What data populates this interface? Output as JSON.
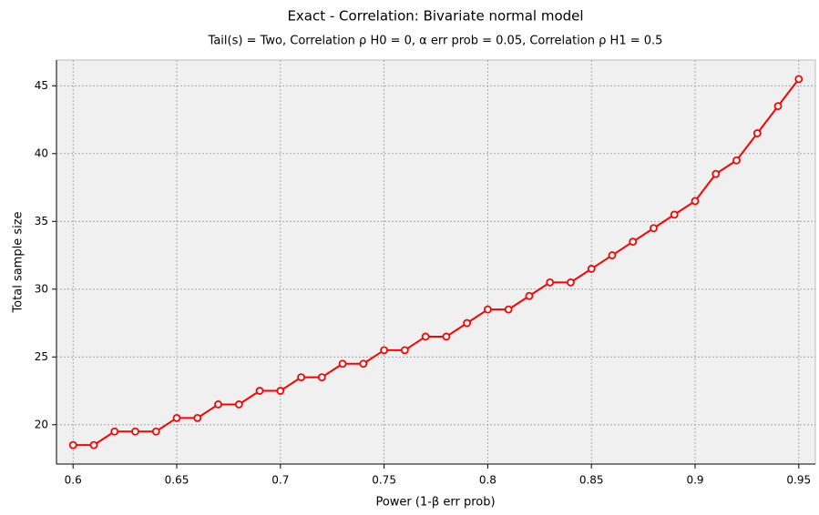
{
  "chart_data": {
    "type": "line",
    "title": "Exact - Correlation: Bivariate normal model",
    "subtitle": "Tail(s) = Two, Correlation ρ H0 = 0, α err prob = 0.05, Correlation ρ H1 = 0.5",
    "x_label": "Power (1-β err prob)",
    "y_label": "Total sample size",
    "x": [
      0.6,
      0.61,
      0.62,
      0.63,
      0.64,
      0.65,
      0.66,
      0.67,
      0.68,
      0.69,
      0.7,
      0.71,
      0.72,
      0.73,
      0.74,
      0.75,
      0.76,
      0.77,
      0.78,
      0.79,
      0.8,
      0.81,
      0.82,
      0.83,
      0.84,
      0.85,
      0.86,
      0.87,
      0.88,
      0.89,
      0.9,
      0.91,
      0.92,
      0.93,
      0.94,
      0.95
    ],
    "series": [
      {
        "color": "#ff0000",
        "values": [
          18.5,
          18.5,
          19.5,
          19.5,
          19.5,
          20.5,
          20.5,
          21.5,
          21.5,
          22.5,
          22.5,
          23.5,
          23.5,
          24.5,
          24.5,
          25.5,
          25.5,
          26.5,
          26.5,
          27.5,
          28.5,
          28.5,
          29.5,
          30.5,
          30.5,
          31.5,
          32.5,
          33.5,
          34.5,
          35.5,
          36.5,
          38.5,
          39.5,
          41.5,
          43.5,
          45.5
        ]
      }
    ],
    "xlim": [
      0.592,
      0.958
    ],
    "ylim": [
      17.1,
      46.9
    ],
    "xticks": [
      0.6,
      0.65,
      0.7,
      0.75,
      0.8,
      0.85,
      0.9,
      0.95
    ],
    "yticks": [
      20,
      25,
      30,
      35,
      40,
      45
    ],
    "grid": true
  }
}
